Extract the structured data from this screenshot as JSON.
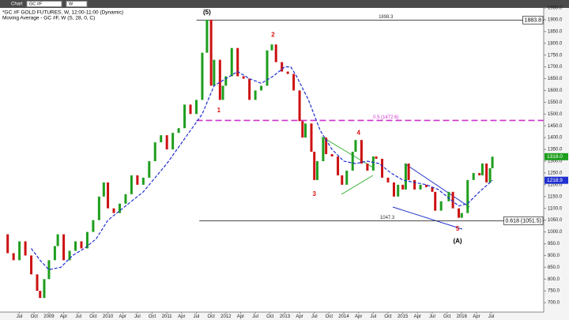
{
  "window": {
    "tab": "Chart",
    "symbol_field": "GC #F",
    "interval_field": "W"
  },
  "chart_data": {
    "type": "price",
    "title": "*GC #F GOLD FUTURES, W, 12:00-11:00 (Dynamic)",
    "subtitle": "Moving Average - GC #F, W (S, 28, 0, C)",
    "xlim": [
      2008.17,
      2017.39
    ],
    "ylim": [
      650,
      1950
    ],
    "xticks": [
      {
        "value": 2008.5,
        "label": "Jul"
      },
      {
        "value": 2008.75,
        "label": "Oct"
      },
      {
        "value": 2009,
        "label": "2009"
      },
      {
        "value": 2009.25,
        "label": "Apr"
      },
      {
        "value": 2009.5,
        "label": "Jul"
      },
      {
        "value": 2009.75,
        "label": "Oct"
      },
      {
        "value": 2010,
        "label": "2010"
      },
      {
        "value": 2010.25,
        "label": "Apr"
      },
      {
        "value": 2010.5,
        "label": "Jul"
      },
      {
        "value": 2010.75,
        "label": "Oct"
      },
      {
        "value": 2011,
        "label": "2011"
      },
      {
        "value": 2011.25,
        "label": "Apr"
      },
      {
        "value": 2011.5,
        "label": "Jul"
      },
      {
        "value": 2011.75,
        "label": "Oct"
      },
      {
        "value": 2012,
        "label": "2012"
      },
      {
        "value": 2012.25,
        "label": "Apr"
      },
      {
        "value": 2012.5,
        "label": "Jul"
      },
      {
        "value": 2012.75,
        "label": "Oct"
      },
      {
        "value": 2013,
        "label": "2013"
      },
      {
        "value": 2013.25,
        "label": "Apr"
      },
      {
        "value": 2013.5,
        "label": "Jul"
      },
      {
        "value": 2013.75,
        "label": "Oct"
      },
      {
        "value": 2014,
        "label": "2014"
      },
      {
        "value": 2014.25,
        "label": "Apr"
      },
      {
        "value": 2014.5,
        "label": "Jul"
      },
      {
        "value": 2014.75,
        "label": "Oct"
      },
      {
        "value": 2015,
        "label": "2015"
      },
      {
        "value": 2015.25,
        "label": "Apr"
      },
      {
        "value": 2015.5,
        "label": "Jul"
      },
      {
        "value": 2015.75,
        "label": "Oct"
      },
      {
        "value": 2016,
        "label": "2016"
      },
      {
        "value": 2016.25,
        "label": "Apr"
      },
      {
        "value": 2016.5,
        "label": "Jul"
      }
    ],
    "yticks": [
      {
        "value": 700,
        "label": "700.0"
      },
      {
        "value": 750,
        "label": "750.0"
      },
      {
        "value": 800,
        "label": "800.0"
      },
      {
        "value": 850,
        "label": "850.0"
      },
      {
        "value": 900,
        "label": "900.0"
      },
      {
        "value": 950,
        "label": "950.0"
      },
      {
        "value": 1000,
        "label": "1000.0"
      },
      {
        "value": 1050,
        "label": "1050.0"
      },
      {
        "value": 1100,
        "label": "1100.0"
      },
      {
        "value": 1150,
        "label": "1150.0"
      },
      {
        "value": 1200,
        "label": "1200.0"
      },
      {
        "value": 1250,
        "label": "1250.0"
      },
      {
        "value": 1300,
        "label": "1300.0"
      },
      {
        "value": 1350,
        "label": "1350.0"
      },
      {
        "value": 1400,
        "label": "1400.0"
      },
      {
        "value": 1450,
        "label": "1450.0"
      },
      {
        "value": 1500,
        "label": "1500.0"
      },
      {
        "value": 1550,
        "label": "1550.0"
      },
      {
        "value": 1600,
        "label": "1600.0"
      },
      {
        "value": 1650,
        "label": "1650.0"
      },
      {
        "value": 1700,
        "label": "1700.0"
      },
      {
        "value": 1750,
        "label": "1750.0"
      },
      {
        "value": 1800,
        "label": "1800.0"
      },
      {
        "value": 1850,
        "label": "1850.0"
      },
      {
        "value": 1900,
        "label": "1900.0"
      },
      {
        "value": 1950,
        "label": "1950.0"
      }
    ],
    "series": [
      {
        "kind": "price",
        "up_color": "#1e9e1e",
        "down_color": "#cc1111",
        "x": [
          2008.2,
          2008.3,
          2008.4,
          2008.5,
          2008.6,
          2008.7,
          2008.8,
          2008.85,
          2008.92,
          2009.0,
          2009.1,
          2009.15,
          2009.25,
          2009.35,
          2009.45,
          2009.55,
          2009.65,
          2009.75,
          2009.85,
          2009.93,
          2010.0,
          2010.1,
          2010.2,
          2010.3,
          2010.4,
          2010.5,
          2010.6,
          2010.7,
          2010.8,
          2010.9,
          2011.0,
          2011.1,
          2011.2,
          2011.3,
          2011.4,
          2011.5,
          2011.6,
          2011.68,
          2011.75,
          2011.8,
          2011.9,
          2011.95,
          2012.0,
          2012.1,
          2012.2,
          2012.3,
          2012.4,
          2012.5,
          2012.6,
          2012.7,
          2012.78,
          2012.85,
          2012.95,
          2013.05,
          2013.15,
          2013.25,
          2013.3,
          2013.35,
          2013.45,
          2013.5,
          2013.55,
          2013.65,
          2013.7,
          2013.8,
          2013.9,
          2013.97,
          2014.05,
          2014.15,
          2014.2,
          2014.3,
          2014.4,
          2014.5,
          2014.55,
          2014.65,
          2014.75,
          2014.85,
          2014.92,
          2015.0,
          2015.05,
          2015.1,
          2015.2,
          2015.3,
          2015.4,
          2015.5,
          2015.55,
          2015.65,
          2015.78,
          2015.85,
          2015.95,
          2016.0,
          2016.1,
          2016.2,
          2016.3,
          2016.35,
          2016.42,
          2016.48,
          2016.52
        ],
        "values": [
          990,
          910,
          880,
          960,
          900,
          820,
          750,
          720,
          800,
          880,
          940,
          990,
          880,
          920,
          960,
          930,
          1000,
          1050,
          1150,
          1210,
          1100,
          1080,
          1120,
          1160,
          1240,
          1200,
          1230,
          1300,
          1380,
          1410,
          1350,
          1420,
          1440,
          1540,
          1500,
          1560,
          1760,
          1900,
          1620,
          1730,
          1560,
          1620,
          1660,
          1780,
          1660,
          1650,
          1560,
          1600,
          1620,
          1770,
          1795,
          1720,
          1680,
          1670,
          1600,
          1470,
          1400,
          1460,
          1340,
          1220,
          1300,
          1400,
          1330,
          1320,
          1240,
          1200,
          1260,
          1340,
          1390,
          1290,
          1260,
          1320,
          1310,
          1230,
          1210,
          1150,
          1200,
          1180,
          1290,
          1220,
          1180,
          1200,
          1190,
          1170,
          1090,
          1130,
          1170,
          1100,
          1060,
          1080,
          1220,
          1250,
          1240,
          1290,
          1210,
          1270,
          1319
        ],
        "last_label": "1319.0",
        "last_color": "#1e9e1e"
      },
      {
        "kind": "line",
        "color": "#1f2fd0",
        "x": [
          2008.7,
          2008.85,
          2009.0,
          2009.2,
          2009.4,
          2009.6,
          2009.8,
          2010.0,
          2010.2,
          2010.4,
          2010.6,
          2010.8,
          2011.0,
          2011.2,
          2011.4,
          2011.6,
          2011.8,
          2012.0,
          2012.2,
          2012.4,
          2012.6,
          2012.8,
          2013.0,
          2013.1,
          2013.2,
          2013.4,
          2013.6,
          2013.8,
          2014.0,
          2014.2,
          2014.4,
          2014.6,
          2014.8,
          2015.0,
          2015.2,
          2015.4,
          2015.6,
          2015.8,
          2015.95,
          2016.1,
          2016.3,
          2016.52
        ],
        "values": [
          930,
          880,
          840,
          850,
          900,
          930,
          970,
          1050,
          1090,
          1130,
          1170,
          1230,
          1290,
          1360,
          1430,
          1500,
          1620,
          1650,
          1680,
          1650,
          1630,
          1660,
          1700,
          1700,
          1660,
          1560,
          1430,
          1350,
          1300,
          1290,
          1300,
          1290,
          1250,
          1220,
          1210,
          1200,
          1180,
          1140,
          1110,
          1120,
          1170,
          1219
        ],
        "last_label": "1218.9"
      }
    ],
    "hlines": [
      {
        "value": 1898.3,
        "from": 2011.5,
        "label": "1898.3",
        "right_label": "1883.8",
        "color": "#333333",
        "dashed": false
      },
      {
        "value": 1472.6,
        "from": 2011.5,
        "label": "0.5 (1472.6)",
        "color": "#cc33cc",
        "dashed": true
      },
      {
        "value": 1047.3,
        "from": 2011.55,
        "label": "1047.3",
        "right_label": "0.618 (1051.5)",
        "color": "#333333",
        "dashed": false
      }
    ],
    "annotations": [
      {
        "text": "(5)",
        "x": 2011.68,
        "y": 1930,
        "color": "#000000"
      },
      {
        "text": "2",
        "x": 2012.8,
        "y": 1835,
        "color": "#dd1111"
      },
      {
        "text": "1",
        "x": 2011.88,
        "y": 1515,
        "color": "#dd1111"
      },
      {
        "text": "3",
        "x": 2013.5,
        "y": 1160,
        "color": "#dd1111"
      },
      {
        "text": "4",
        "x": 2014.25,
        "y": 1420,
        "color": "#dd1111"
      },
      {
        "text": "5",
        "x": 2015.93,
        "y": 1012,
        "color": "#dd1111"
      },
      {
        "text": "(A)",
        "x": 2015.93,
        "y": 960,
        "color": "#000000"
      }
    ]
  }
}
